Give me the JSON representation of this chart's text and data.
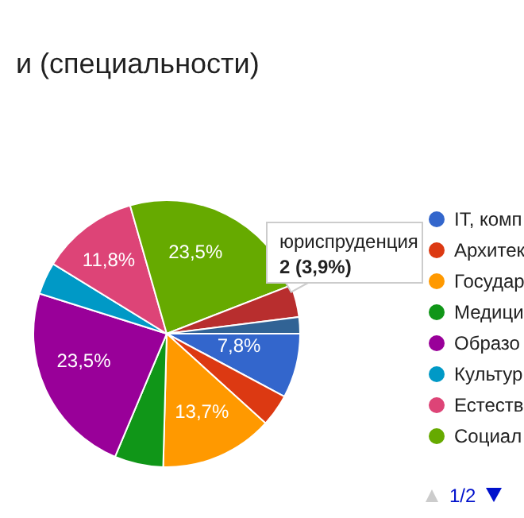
{
  "chart_data": {
    "type": "pie",
    "title": "и (специальности)",
    "categories": [
      "IT, комп",
      "Архитек",
      "Государ",
      "Медици",
      "Образо",
      "Культур",
      "Естеств",
      "Социал",
      "юриспруденция",
      null
    ],
    "values": [
      7.8,
      3.9,
      13.7,
      5.9,
      23.5,
      3.9,
      11.8,
      23.5,
      3.9,
      2.0
    ],
    "colors": [
      "#3366cc",
      "#dc3912",
      "#ff9900",
      "#109618",
      "#990099",
      "#0099c6",
      "#dd4477",
      "#66aa00",
      "#b82e2e",
      "#316395"
    ],
    "value_labels": [
      "7,8%",
      null,
      "13,7%",
      null,
      "23,5%",
      null,
      "11,8%",
      "23,5%",
      "2 (3,9%)",
      null
    ],
    "legend": "right",
    "annotations": [
      "1/2"
    ]
  }
}
